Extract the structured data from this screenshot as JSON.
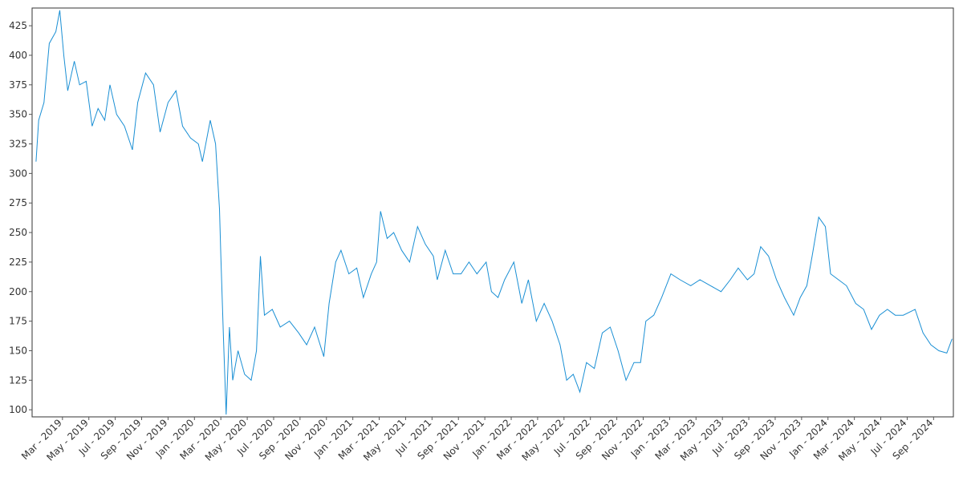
{
  "chart_data": {
    "type": "line",
    "color": "#1a8fd4",
    "x": [
      0,
      0.2,
      0.6,
      1.0,
      1.5,
      1.8,
      2.1,
      2.4,
      2.9,
      3.3,
      3.8,
      4.25,
      4.7,
      5.2,
      5.6,
      6.1,
      6.7,
      7.3,
      7.7,
      8.3,
      8.9,
      9.4,
      10.0,
      10.6,
      11.1,
      11.7,
      12.3,
      12.6,
      13.2,
      13.6,
      13.9,
      14.0,
      14.2,
      14.4,
      14.65,
      14.9,
      15.3,
      15.8,
      16.3,
      16.7,
      17.0,
      17.3,
      17.9,
      18.5,
      19.2,
      19.9,
      20.5,
      21.1,
      21.8,
      22.2,
      22.7,
      23.1,
      23.7,
      24.3,
      24.8,
      25.4,
      25.8,
      26.1,
      26.6,
      27.1,
      27.7,
      28.3,
      28.9,
      29.5,
      30.1,
      30.4,
      31.0,
      31.6,
      32.2,
      32.8,
      33.4,
      34.1,
      34.5,
      35.0,
      35.5,
      36.2,
      36.8,
      37.3,
      37.9,
      38.5,
      39.1,
      39.7,
      40.2,
      40.7,
      41.2,
      41.7,
      42.3,
      42.9,
      43.5,
      44.1,
      44.7,
      45.3,
      45.8,
      46.2,
      46.8,
      47.4,
      48.1,
      48.8,
      49.6,
      50.3,
      51.1,
      51.9,
      52.6,
      53.2,
      53.9,
      54.4,
      54.9,
      55.5,
      56.1,
      56.7,
      57.4,
      57.9,
      58.4,
      58.8,
      59.3,
      59.8,
      60.2,
      60.8,
      61.4,
      62.1,
      62.7,
      63.3,
      63.9,
      64.5,
      65.1,
      65.7,
      66.6,
      67.2,
      67.8,
      68.4,
      69.0,
      69.4
    ],
    "values": [
      310,
      345,
      360,
      410,
      420,
      438,
      400,
      370,
      395,
      375,
      378,
      340,
      355,
      345,
      375,
      350,
      340,
      320,
      360,
      385,
      375,
      335,
      360,
      370,
      340,
      330,
      325,
      310,
      345,
      325,
      270,
      230,
      160,
      96,
      170,
      125,
      150,
      130,
      125,
      150,
      230,
      180,
      185,
      170,
      175,
      165,
      155,
      170,
      145,
      190,
      225,
      235,
      215,
      220,
      195,
      215,
      225,
      268,
      245,
      250,
      235,
      225,
      255,
      240,
      230,
      210,
      235,
      215,
      215,
      225,
      215,
      225,
      200,
      195,
      210,
      225,
      190,
      210,
      175,
      190,
      175,
      155,
      125,
      130,
      115,
      140,
      135,
      165,
      170,
      150,
      125,
      140,
      140,
      175,
      180,
      195,
      215,
      210,
      205,
      210,
      205,
      200,
      210,
      220,
      210,
      215,
      238,
      230,
      210,
      195,
      180,
      195,
      205,
      230,
      263,
      255,
      215,
      210,
      205,
      190,
      185,
      168,
      180,
      185,
      180,
      180,
      185,
      165,
      155,
      150,
      148,
      160
    ],
    "xlim": [
      -0.3,
      69.5
    ],
    "xticks": [
      {
        "value": 2,
        "label": "Mar - 2019"
      },
      {
        "value": 4,
        "label": "May - 2019"
      },
      {
        "value": 6,
        "label": "Jul - 2019"
      },
      {
        "value": 8,
        "label": "Sep - 2019"
      },
      {
        "value": 10,
        "label": "Nov - 2019"
      },
      {
        "value": 12,
        "label": "Jan - 2020"
      },
      {
        "value": 14,
        "label": "Mar - 2020"
      },
      {
        "value": 16,
        "label": "May - 2020"
      },
      {
        "value": 18,
        "label": "Jul - 2020"
      },
      {
        "value": 20,
        "label": "Sep - 2020"
      },
      {
        "value": 22,
        "label": "Nov - 2020"
      },
      {
        "value": 24,
        "label": "Jan - 2021"
      },
      {
        "value": 26,
        "label": "Mar - 2021"
      },
      {
        "value": 28,
        "label": "May - 2021"
      },
      {
        "value": 30,
        "label": "Jul - 2021"
      },
      {
        "value": 32,
        "label": "Sep - 2021"
      },
      {
        "value": 34,
        "label": "Nov - 2021"
      },
      {
        "value": 36,
        "label": "Jan - 2022"
      },
      {
        "value": 38,
        "label": "Mar - 2022"
      },
      {
        "value": 40,
        "label": "May - 2022"
      },
      {
        "value": 42,
        "label": "Jul - 2022"
      },
      {
        "value": 44,
        "label": "Sep - 2022"
      },
      {
        "value": 46,
        "label": "Nov - 2022"
      },
      {
        "value": 48,
        "label": "Jan - 2023"
      },
      {
        "value": 50,
        "label": "Mar - 2023"
      },
      {
        "value": 52,
        "label": "May - 2023"
      },
      {
        "value": 54,
        "label": "Jul - 2023"
      },
      {
        "value": 56,
        "label": "Sep - 2023"
      },
      {
        "value": 58,
        "label": "Nov - 2023"
      },
      {
        "value": 60,
        "label": "Jan - 2024"
      },
      {
        "value": 62,
        "label": "Mar - 2024"
      },
      {
        "value": 64,
        "label": "May - 2024"
      },
      {
        "value": 66,
        "label": "Jul - 2024"
      },
      {
        "value": 68,
        "label": "Sep - 2024"
      }
    ],
    "ylim": [
      94,
      440
    ],
    "yticks": [
      100,
      125,
      150,
      175,
      200,
      225,
      250,
      275,
      300,
      325,
      350,
      375,
      400,
      425
    ],
    "grid": false
  }
}
